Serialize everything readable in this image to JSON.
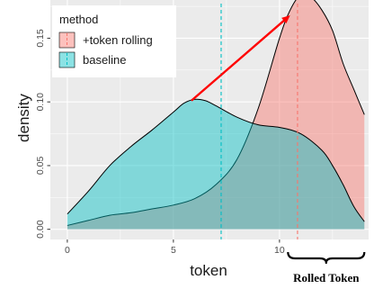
{
  "chart_data": {
    "type": "area",
    "xlabel": "token",
    "ylabel": "density",
    "xlim": [
      -0.8,
      14.2
    ],
    "ylim": [
      -0.008,
      0.18
    ],
    "x_ticks": [
      0,
      5,
      10
    ],
    "y_ticks": [
      0.0,
      0.05,
      0.1,
      0.15
    ],
    "x_tick_labels": [
      "0",
      "5",
      "10"
    ],
    "y_tick_labels": [
      "0.00",
      "0.05",
      "0.10",
      "0.15"
    ],
    "grid": true,
    "legend": {
      "title": "method",
      "placement": "top-left-inside",
      "entries": [
        "+token rolling",
        "baseline"
      ]
    },
    "series": [
      {
        "name": "+token rolling",
        "color": "#F8766D",
        "mean_x": 10.85,
        "points": [
          [
            0,
            0.003
          ],
          [
            1,
            0.007
          ],
          [
            2,
            0.011
          ],
          [
            3,
            0.013
          ],
          [
            4,
            0.016
          ],
          [
            5,
            0.019
          ],
          [
            6,
            0.024
          ],
          [
            7,
            0.035
          ],
          [
            8,
            0.055
          ],
          [
            9,
            0.095
          ],
          [
            10,
            0.15
          ],
          [
            10.5,
            0.172
          ],
          [
            11,
            0.184
          ],
          [
            11.5,
            0.182
          ],
          [
            12,
            0.172
          ],
          [
            12.5,
            0.156
          ],
          [
            13,
            0.13
          ],
          [
            13.5,
            0.11
          ],
          [
            14,
            0.09
          ]
        ]
      },
      {
        "name": "baseline",
        "color": "#00BFC4",
        "mean_x": 7.25,
        "points": [
          [
            0,
            0.012
          ],
          [
            1,
            0.03
          ],
          [
            2,
            0.05
          ],
          [
            3,
            0.065
          ],
          [
            4,
            0.078
          ],
          [
            5,
            0.092
          ],
          [
            5.5,
            0.099
          ],
          [
            6,
            0.102
          ],
          [
            6.5,
            0.101
          ],
          [
            7,
            0.097
          ],
          [
            8,
            0.088
          ],
          [
            9,
            0.082
          ],
          [
            10,
            0.08
          ],
          [
            11,
            0.075
          ],
          [
            12,
            0.062
          ],
          [
            12.5,
            0.05
          ],
          [
            13,
            0.035
          ],
          [
            13.5,
            0.018
          ],
          [
            14,
            0.006
          ]
        ]
      }
    ],
    "annotations": {
      "arrow": {
        "from": [
          5.85,
          0.101
        ],
        "to": [
          10.5,
          0.168
        ],
        "color": "#FF0000"
      },
      "bracket": {
        "from_x": 10.4,
        "to_x": 14.0,
        "label": "Rolled Token"
      }
    }
  }
}
